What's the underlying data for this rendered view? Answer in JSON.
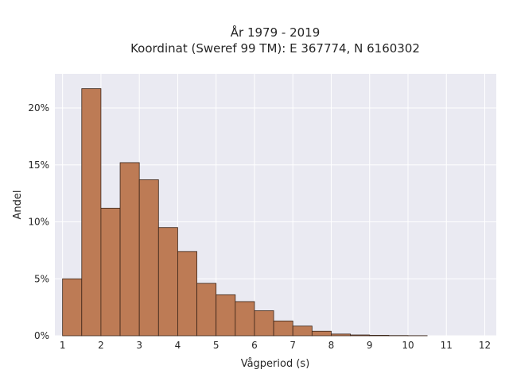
{
  "chart_data": {
    "type": "bar",
    "title_line1": "År 1979 - 2019",
    "title_line2": "Koordinat (Sweref 99 TM): E 367774, N 6160302",
    "xlabel": "Vågperiod (s)",
    "ylabel": "Andel",
    "bin_edges": [
      1.0,
      1.5,
      2.0,
      2.5,
      3.0,
      3.5,
      4.0,
      4.5,
      5.0,
      5.5,
      6.0,
      6.5,
      7.0,
      7.5,
      8.0,
      8.5,
      9.0,
      9.5,
      10.0,
      10.5
    ],
    "values": [
      5.0,
      21.7,
      11.2,
      15.2,
      13.7,
      9.5,
      7.4,
      4.6,
      3.6,
      3.0,
      2.2,
      1.3,
      0.85,
      0.4,
      0.15,
      0.07,
      0.04,
      0.02,
      0.01
    ],
    "xlim": [
      0.8,
      12.3
    ],
    "ylim": [
      0,
      23
    ],
    "x_ticks": [
      "1",
      "2",
      "3",
      "4",
      "5",
      "6",
      "7",
      "8",
      "9",
      "10",
      "11",
      "12"
    ],
    "x_tick_values": [
      1,
      2,
      3,
      4,
      5,
      6,
      7,
      8,
      9,
      10,
      11,
      12
    ],
    "y_ticks": [
      "0%",
      "5%",
      "10%",
      "15%",
      "20%"
    ],
    "y_tick_values": [
      0,
      5,
      10,
      15,
      20
    ],
    "bar_color": "#bd7b55",
    "edge_color": "#3a2418",
    "background_color": "#eaeaf2",
    "grid": true,
    "legend": "none"
  }
}
